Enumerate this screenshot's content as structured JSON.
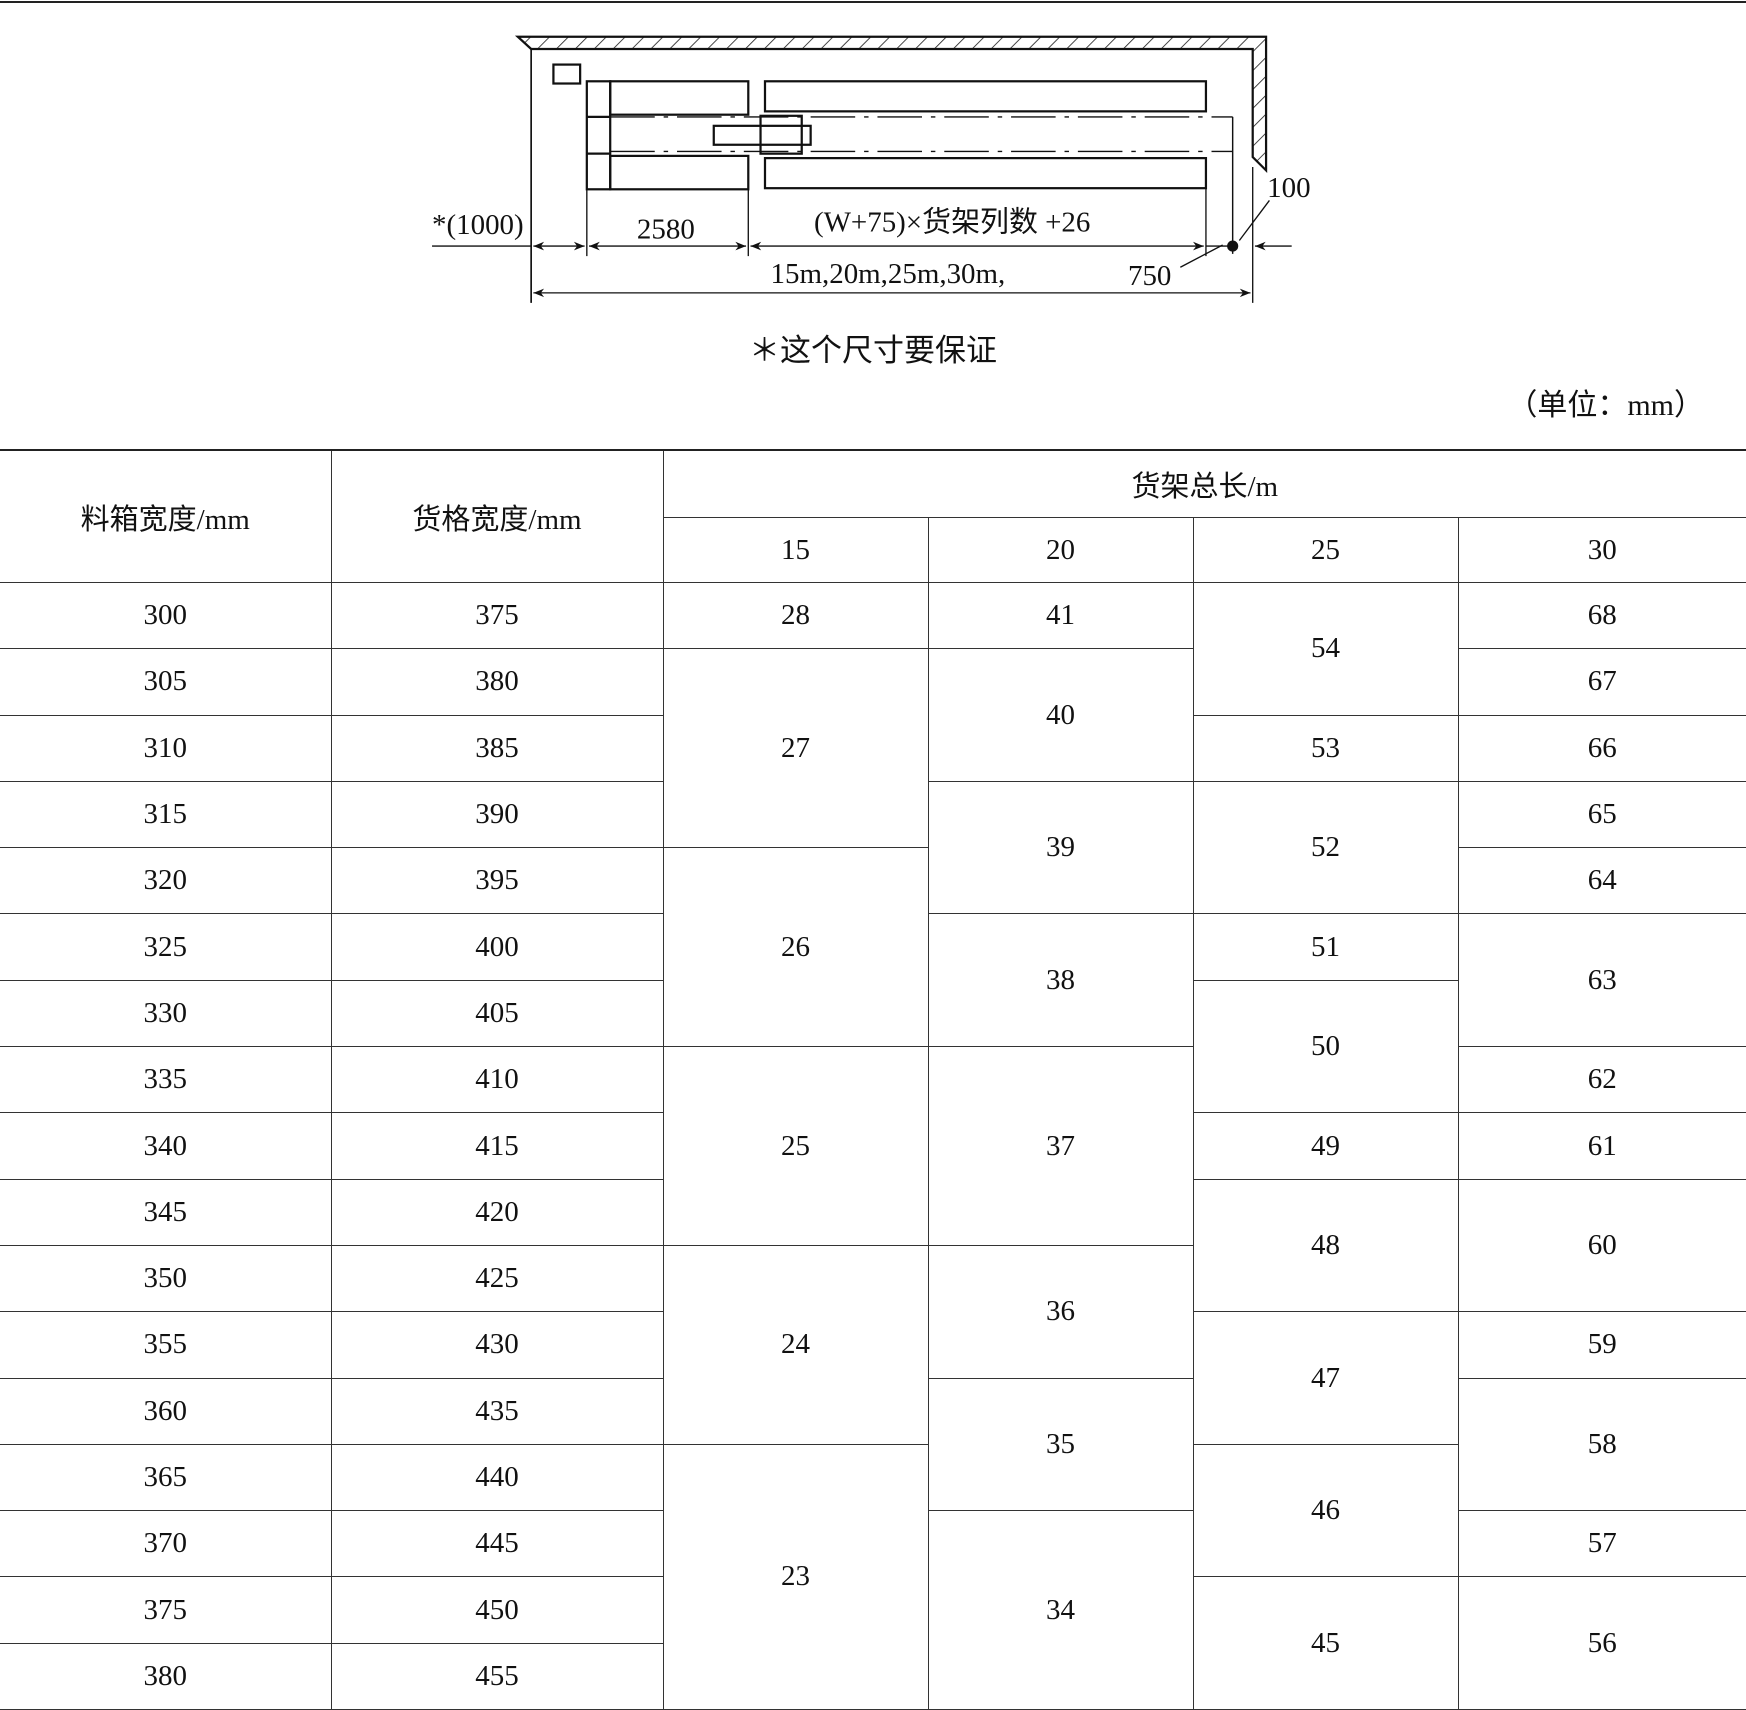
{
  "diagram": {
    "label_clearance": "*(1000)",
    "label_2580": "2580",
    "label_formula": "(W+75)×货架列数 +26",
    "label_lengths": "15m,20m,25m,30m,",
    "label_750": "750",
    "label_100": "100"
  },
  "caption": "＊这个尺寸要保证",
  "unit": "（单位：mm）",
  "table": {
    "headers": {
      "bin_width": "料箱宽度/mm",
      "slot_width": "货格宽度/mm",
      "total_length": "货架总长/m",
      "lengths": [
        "15",
        "20",
        "25",
        "30"
      ]
    },
    "bin_widths": [
      "300",
      "305",
      "310",
      "315",
      "320",
      "325",
      "330",
      "335",
      "340",
      "345",
      "350",
      "355",
      "360",
      "365",
      "370",
      "375",
      "380"
    ],
    "slot_widths": [
      "375",
      "380",
      "385",
      "390",
      "395",
      "400",
      "405",
      "410",
      "415",
      "420",
      "425",
      "430",
      "435",
      "440",
      "445",
      "450",
      "455"
    ],
    "col_15": [
      {
        "v": "28",
        "span": 1
      },
      {
        "v": "27",
        "span": 3
      },
      {
        "v": "26",
        "span": 3
      },
      {
        "v": "25",
        "span": 3
      },
      {
        "v": "24",
        "span": 3
      },
      {
        "v": "23",
        "span": 4
      }
    ],
    "col_20": [
      {
        "v": "41",
        "span": 1
      },
      {
        "v": "40",
        "span": 2
      },
      {
        "v": "39",
        "span": 2
      },
      {
        "v": "38",
        "span": 2
      },
      {
        "v": "37",
        "span": 3
      },
      {
        "v": "36",
        "span": 2
      },
      {
        "v": "35",
        "span": 2
      },
      {
        "v": "34",
        "span": 3
      }
    ],
    "col_25": [
      {
        "v": "54",
        "span": 2
      },
      {
        "v": "53",
        "span": 1
      },
      {
        "v": "52",
        "span": 2
      },
      {
        "v": "51",
        "span": 1
      },
      {
        "v": "50",
        "span": 2
      },
      {
        "v": "49",
        "span": 1
      },
      {
        "v": "48",
        "span": 2
      },
      {
        "v": "47",
        "span": 2
      },
      {
        "v": "46",
        "span": 2
      },
      {
        "v": "45",
        "span": 2
      }
    ],
    "col_30": [
      {
        "v": "68",
        "span": 1
      },
      {
        "v": "67",
        "span": 1
      },
      {
        "v": "66",
        "span": 1
      },
      {
        "v": "65",
        "span": 1
      },
      {
        "v": "64",
        "span": 1
      },
      {
        "v": "63",
        "span": 2
      },
      {
        "v": "62",
        "span": 1
      },
      {
        "v": "61",
        "span": 1
      },
      {
        "v": "60",
        "span": 2
      },
      {
        "v": "59",
        "span": 1
      },
      {
        "v": "58",
        "span": 2
      },
      {
        "v": "57",
        "span": 1
      },
      {
        "v": "56",
        "span": 2
      }
    ]
  }
}
